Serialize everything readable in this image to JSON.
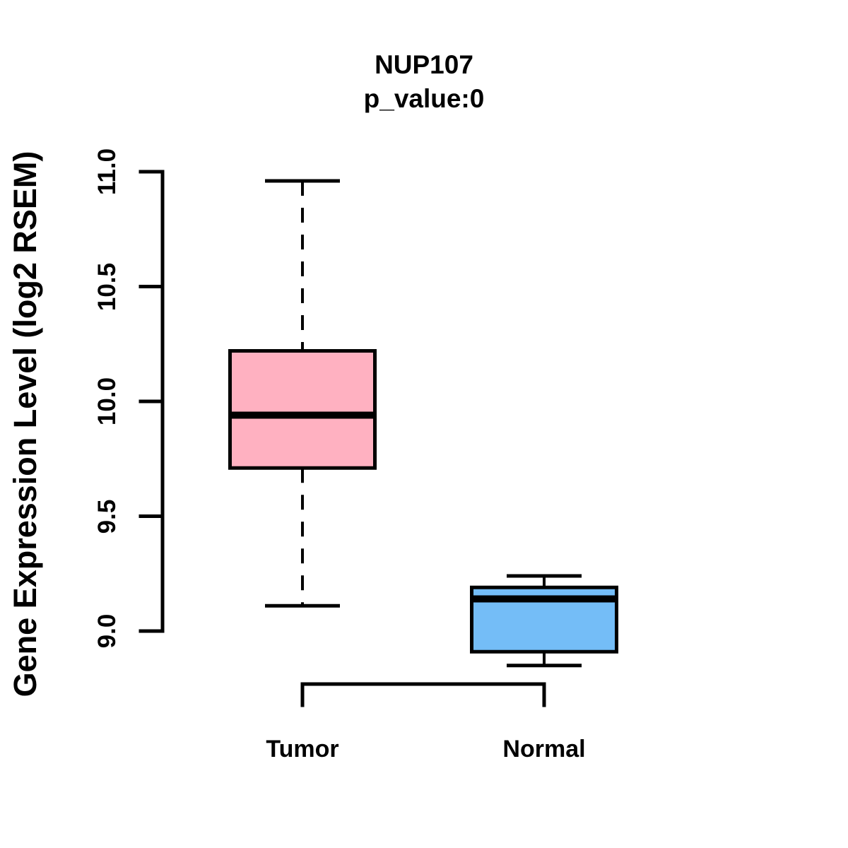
{
  "chart_data": {
    "type": "boxplot",
    "title": "NUP107",
    "subtitle": "p_value:0",
    "ylabel": "Gene Expression Level (log2 RSEM)",
    "xlabel": "",
    "categories": [
      "Tumor",
      "Normal"
    ],
    "ylim": [
      9.0,
      11.0
    ],
    "yticks": [
      {
        "value": 9.0,
        "label": "9.0"
      },
      {
        "value": 9.5,
        "label": "9.5"
      },
      {
        "value": 10.0,
        "label": "10.0"
      },
      {
        "value": 10.5,
        "label": "10.5"
      },
      {
        "value": 11.0,
        "label": "11.0"
      }
    ],
    "grid": false,
    "legend": "none",
    "series": [
      {
        "name": "Tumor",
        "color": "#FFB1C1",
        "whisker_low": 9.11,
        "q1": 9.71,
        "median": 9.94,
        "q3": 10.22,
        "whisker_high": 10.96,
        "whisker_style": "dashed"
      },
      {
        "name": "Normal",
        "color": "#74BDF7",
        "whisker_low": 8.85,
        "q1": 8.91,
        "median": 9.14,
        "q3": 9.19,
        "whisker_high": 9.24,
        "whisker_style": "dashed"
      }
    ],
    "colors": {
      "tumor_fill": "#FFB1C1",
      "normal_fill": "#74BDF7",
      "stroke": "#000000",
      "background": "#FFFFFF"
    }
  }
}
